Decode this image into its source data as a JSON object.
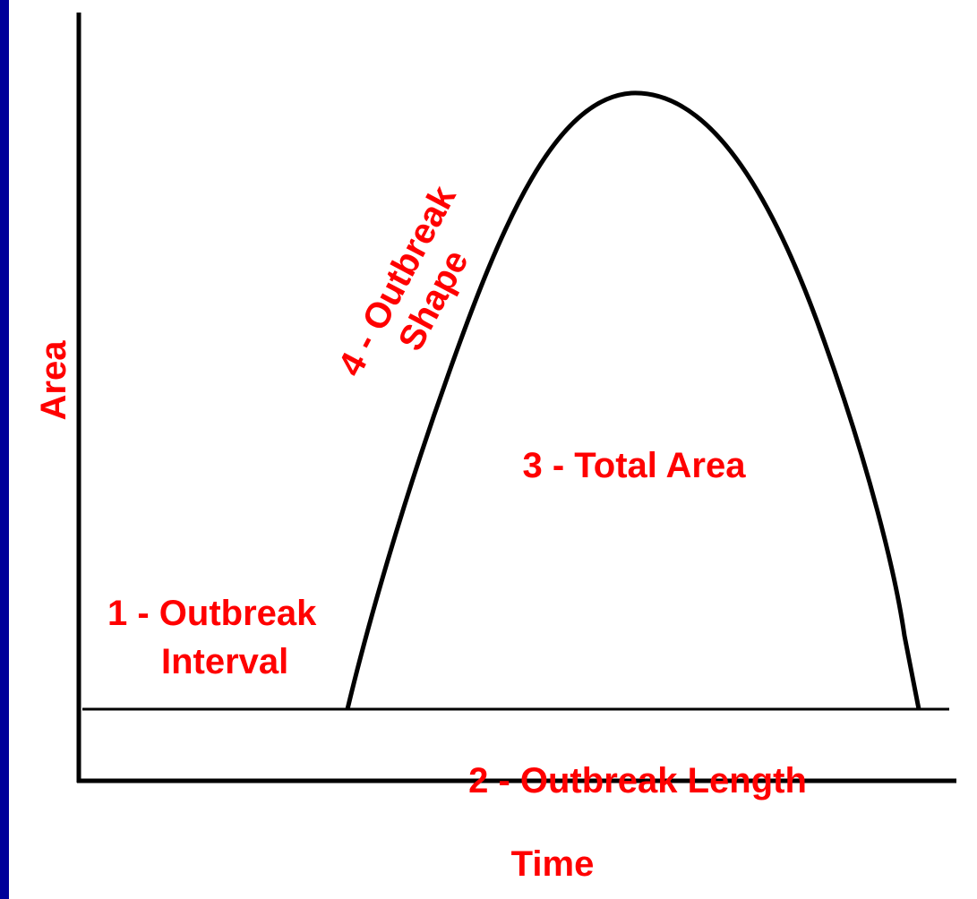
{
  "axes": {
    "y_label": "Area",
    "x_label": "Time"
  },
  "labels": {
    "interval_1": "1 -  Outbreak",
    "interval_2": "Interval",
    "length": "2 - Outbreak Length",
    "total_area": "3 - Total Area",
    "shape_1": "4 - Outbreak",
    "shape_2": "Shape"
  }
}
